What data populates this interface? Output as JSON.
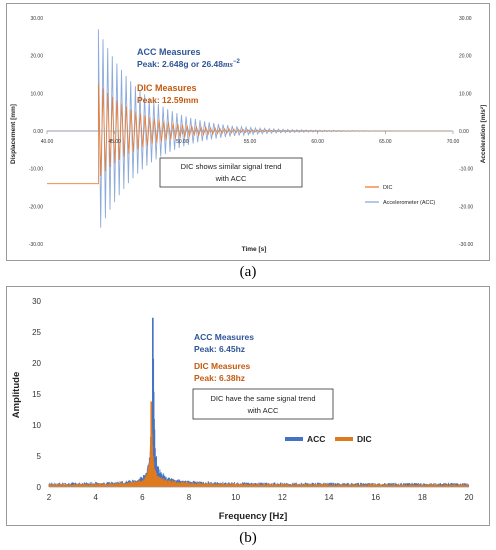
{
  "chart_data": [
    {
      "type": "line",
      "panel_label": "(a)",
      "xlabel": "Time [s]",
      "ylabel": "Displacement [mm]",
      "ylabel_right": "Acceleration [m/s²]",
      "xlim": [
        40,
        70
      ],
      "ylim": [
        -30,
        30
      ],
      "xticks": [
        "40.00",
        "45.00",
        "50.00",
        "55.00",
        "60.00",
        "65.00",
        "70.00"
      ],
      "yticks": [
        "30.00",
        "20.00",
        "10.00",
        "0.00",
        "-10.00",
        "-20.00",
        "-30.00"
      ],
      "yticks_right": [
        "30.00",
        "20.00",
        "10.00",
        "0.00",
        "-10.00",
        "-20.00",
        "-30.00"
      ],
      "series": [
        {
          "name": "DIC",
          "color": "#ed7d31",
          "pre_value": -14.0,
          "onset_x": 43.8,
          "peak": 12.59,
          "decay": 0.32,
          "freq_hz": 6.38
        },
        {
          "name": "Accelerometer (ACC)",
          "color": "#8eaadb",
          "pre_value": 0.0,
          "onset_x": 43.8,
          "peak": 27.0,
          "decay": 0.3,
          "freq_hz": 6.45
        }
      ],
      "annotations": {
        "acc_title": "ACC Measures",
        "acc_peak": "Peak: 2.648g or 26.48",
        "acc_unit": "ms",
        "acc_exp": "−2",
        "dic_title": "DIC Measures",
        "dic_peak": "Peak: 12.59mm",
        "box_line1": "DIC shows similar signal trend",
        "box_line2": "with ACC"
      },
      "legend_placement": "bottom-right",
      "grid": false
    },
    {
      "type": "line",
      "panel_label": "(b)",
      "xlabel": "Frequency [Hz]",
      "ylabel": "Amplitude",
      "xlim": [
        2,
        20
      ],
      "ylim": [
        0,
        30
      ],
      "xticks": [
        "2",
        "4",
        "6",
        "8",
        "10",
        "12",
        "14",
        "16",
        "18",
        "20"
      ],
      "yticks": [
        "30",
        "25",
        "20",
        "15",
        "10",
        "5",
        "0"
      ],
      "series": [
        {
          "name": "ACC",
          "color": "#4472c4",
          "peak_x": 6.45,
          "peak_y": 27.3,
          "base": 0.4
        },
        {
          "name": "DIC",
          "color": "#e07a1f",
          "peak_x": 6.38,
          "peak_y": 13.8,
          "base": 0.3
        }
      ],
      "annotations": {
        "acc_title": "ACC Measures",
        "acc_peak": "Peak: 6.45hz",
        "dic_title": "DIC Measures",
        "dic_peak": "Peak: 6.38hz",
        "box_line1": "DIC have the same signal trend",
        "box_line2": "with ACC"
      },
      "legend_placement": "right",
      "grid": false
    }
  ]
}
